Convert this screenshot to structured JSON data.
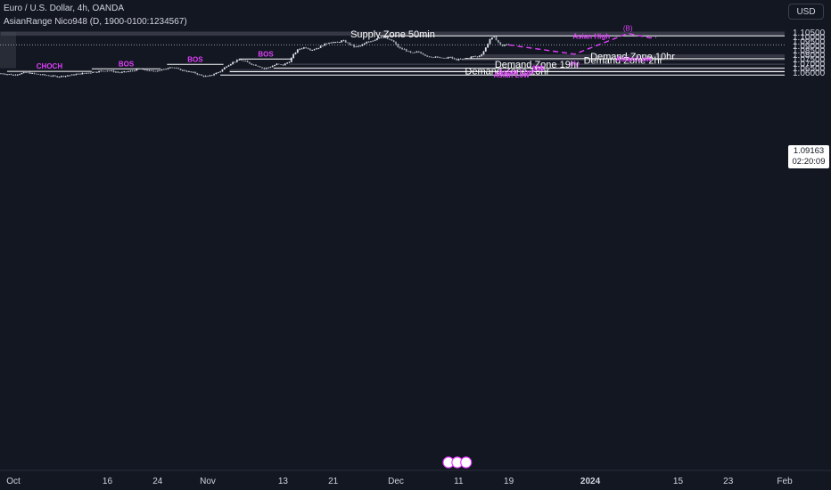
{
  "header": {
    "title": "Euro / U.S. Dollar, 4h, OANDA",
    "indicator": "AsianRange Nico948 (D, 1900-0100:1234567)"
  },
  "currency": "USD",
  "last_price": {
    "price": "1.09163",
    "countdown": "02:20:09"
  },
  "colors": {
    "background": "#131722",
    "zone_fill": "#434651",
    "candle": "#e0e3eb",
    "accent": "#e040fb",
    "line": "#ffffff"
  },
  "chart_data": {
    "type": "candlestick",
    "symbol": "EURUSD",
    "timeframe": "4h",
    "ylim": [
      1.0565,
      1.1085
    ],
    "y_ticks": [
      "1.10500",
      "1.10000",
      "1.09500",
      "1.09000",
      "1.08500",
      "1.08000",
      "1.07500",
      "1.07000",
      "1.06500",
      "1.06000"
    ],
    "x_ticks": [
      {
        "label": "Oct",
        "day": 0
      },
      {
        "label": "16",
        "day": 15
      },
      {
        "label": "24",
        "day": 23
      },
      {
        "label": "Nov",
        "day": 31
      },
      {
        "label": "13",
        "day": 43
      },
      {
        "label": "21",
        "day": 51
      },
      {
        "label": "Dec",
        "day": 61
      },
      {
        "label": "11",
        "day": 71
      },
      {
        "label": "19",
        "day": 79
      },
      {
        "label": "2024",
        "day": 92,
        "bold": true
      },
      {
        "label": "15",
        "day": 106
      },
      {
        "label": "23",
        "day": 114
      },
      {
        "label": "Feb",
        "day": 123
      }
    ],
    "price_path": [
      [
        -2,
        1.0595
      ],
      [
        0,
        1.058
      ],
      [
        2,
        1.0605
      ],
      [
        4,
        1.0585
      ],
      [
        7,
        1.056
      ],
      [
        9,
        1.0575
      ],
      [
        11,
        1.0595
      ],
      [
        13,
        1.0615
      ],
      [
        15,
        1.063
      ],
      [
        17,
        1.0605
      ],
      [
        19,
        1.0625
      ],
      [
        20,
        1.065
      ],
      [
        22,
        1.062
      ],
      [
        24,
        1.064
      ],
      [
        25,
        1.067
      ],
      [
        27,
        1.063
      ],
      [
        29,
        1.06
      ],
      [
        30,
        1.057
      ],
      [
        31,
        1.056
      ],
      [
        33,
        1.062
      ],
      [
        34,
        1.068
      ],
      [
        35,
        1.072
      ],
      [
        36,
        1.075
      ],
      [
        37,
        1.073
      ],
      [
        38,
        1.07
      ],
      [
        39,
        1.068
      ],
      [
        40,
        1.065
      ],
      [
        41,
        1.067
      ],
      [
        42,
        1.07
      ],
      [
        43,
        1.069
      ],
      [
        44,
        1.073
      ],
      [
        44.8,
        1.082
      ],
      [
        45.5,
        1.087
      ],
      [
        46.5,
        1.089
      ],
      [
        47.5,
        1.086
      ],
      [
        48.5,
        1.088
      ],
      [
        49.5,
        1.092
      ],
      [
        50.5,
        1.095
      ],
      [
        51.5,
        1.094
      ],
      [
        52.5,
        1.0965
      ],
      [
        53.5,
        1.093
      ],
      [
        54.5,
        1.089
      ],
      [
        55.5,
        1.091
      ],
      [
        56.5,
        1.095
      ],
      [
        57.5,
        1.097
      ],
      [
        58.5,
        1.101
      ],
      [
        59.5,
        1.0985
      ],
      [
        60.5,
        1.096
      ],
      [
        61.5,
        1.088
      ],
      [
        62.5,
        1.086
      ],
      [
        63.5,
        1.082
      ],
      [
        64.5,
        1.084
      ],
      [
        65.5,
        1.081
      ],
      [
        66.5,
        1.077
      ],
      [
        67.5,
        1.079
      ],
      [
        68.5,
        1.076
      ],
      [
        69.5,
        1.078
      ],
      [
        70.5,
        1.075
      ],
      [
        71.5,
        1.0755
      ],
      [
        72.5,
        1.077
      ],
      [
        73.5,
        1.079
      ],
      [
        74,
        1.078
      ],
      [
        74.8,
        1.082
      ],
      [
        75.3,
        1.088
      ],
      [
        76,
        1.098
      ],
      [
        76.6,
        1.1005
      ],
      [
        77.2,
        1.096
      ],
      [
        77.8,
        1.09
      ],
      [
        78.4,
        1.092
      ],
      [
        79,
        1.0916
      ]
    ],
    "zones": [
      {
        "label": "Supply Zone 50min",
        "low": 1.102,
        "high": 1.1065,
        "from": -2,
        "to": 124
      },
      {
        "label": "Demand Zone 10hr",
        "low": 1.0773,
        "high": 1.081,
        "from": 74.5,
        "to": 124
      },
      {
        "label": "Demand Zone 2hr",
        "low": 1.0741,
        "high": 1.0754,
        "from": 71.5,
        "to": 124
      },
      {
        "label": "Demand Zone 19hr",
        "low": 1.069,
        "high": 1.0707,
        "from": 44,
        "to": 124
      },
      {
        "label": "Demand Zone 18hr",
        "low": 1.0612,
        "high": 1.0643,
        "from": 34.5,
        "to": 124
      }
    ],
    "levels": [
      {
        "label": "Asian High",
        "price": 1.1017,
        "from": 58.5,
        "to": 124
      },
      {
        "label": "Asian Low",
        "price": 1.0761,
        "from": 72,
        "to": 124
      },
      {
        "label": "$$$",
        "price": 1.0656,
        "from": 41.5,
        "to": 124
      },
      {
        "label": "Asian Low",
        "price": 1.0615,
        "from": 34.5,
        "to": 124
      },
      {
        "label": "Asian Low",
        "price": 1.0578,
        "from": 33,
        "to": 124
      }
    ],
    "structure": [
      {
        "label": "BOS",
        "price": 1.0757,
        "from": 36,
        "to": 44.5
      },
      {
        "label": "BOS",
        "price": 1.0697,
        "from": 24.5,
        "to": 33.5
      },
      {
        "label": "BOS",
        "price": 1.0647,
        "from": 12.5,
        "to": 23.5
      },
      {
        "label": "CHOCH",
        "price": 1.0619,
        "from": -1,
        "to": 12.5
      }
    ],
    "projection": {
      "points": [
        [
          79,
          1.0916
        ],
        [
          89.5,
          1.0812
        ],
        [
          98,
          1.1045
        ],
        [
          101.5,
          1.0995
        ],
        [
          102.5,
          1.1
        ]
      ],
      "labels": [
        {
          "label": "(A)",
          "day": 89.5,
          "price": 1.0812
        },
        {
          "label": "(B)",
          "day": 98,
          "price": 1.1045
        }
      ]
    }
  }
}
